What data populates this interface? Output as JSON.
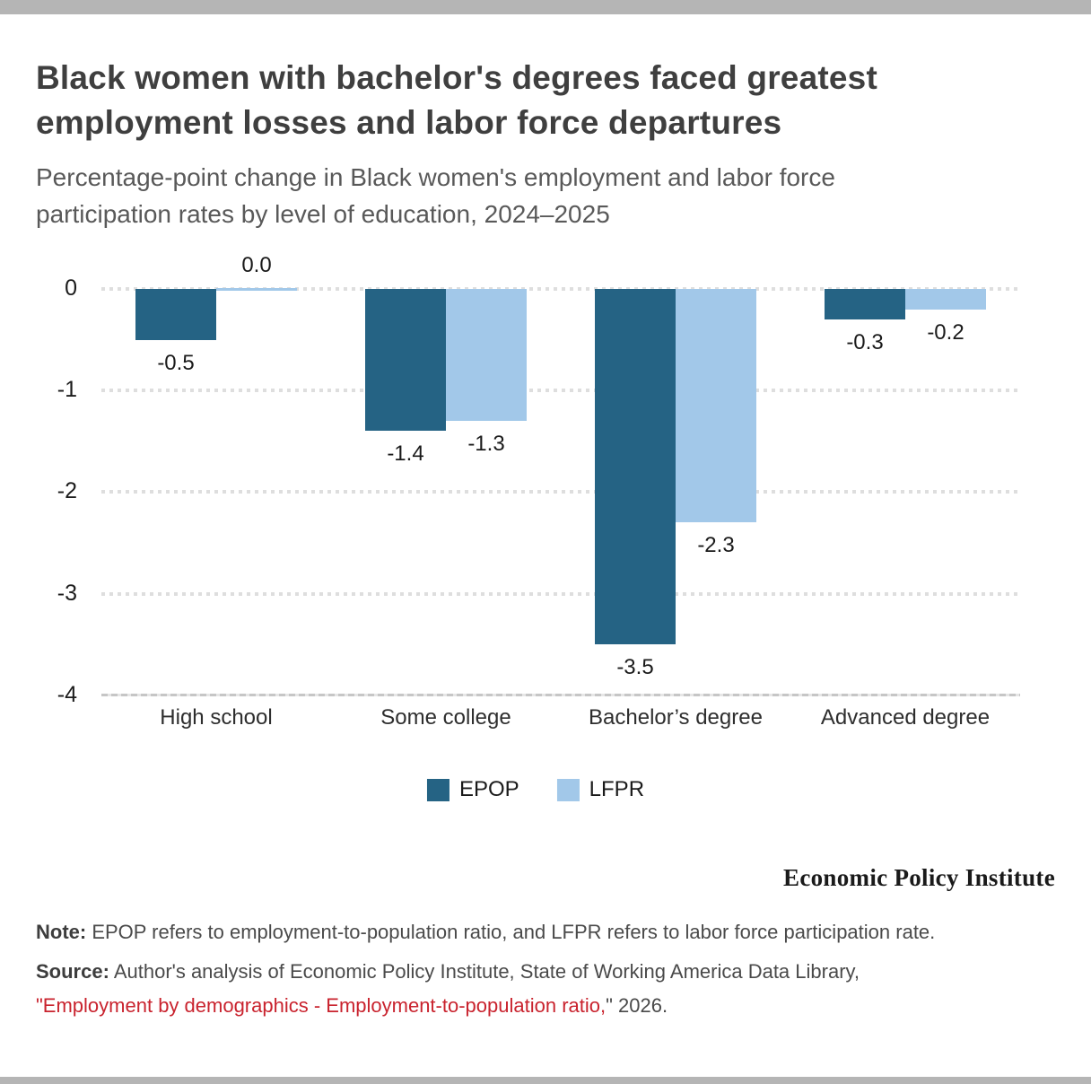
{
  "header": {
    "title_lines": [
      "Black women with bachelor's degrees faced greatest",
      "employment losses and labor force departures"
    ],
    "subtitle_lines": [
      "Percentage-point change in Black women's employment and labor force",
      "participation rates by level of education, 2024–2025"
    ]
  },
  "chart_data": {
    "type": "bar",
    "title": "Black women with bachelor's degrees faced greatest employment losses and labor force departures",
    "subtitle": "Percentage-point change in Black women's employment and labor force participation rates by level of education, 2024–2025",
    "categories": [
      "High school",
      "Some college",
      "Bachelor’s degree",
      "Advanced degree"
    ],
    "series": [
      {
        "name": "EPOP",
        "color": "#256384",
        "values": [
          -0.5,
          -1.4,
          -3.5,
          -0.3
        ],
        "labels": [
          "-0.5",
          "-1.4",
          "-3.5",
          "-0.3"
        ]
      },
      {
        "name": "LFPR",
        "color": "#a2c8e9",
        "values": [
          0.0,
          -1.3,
          -2.3,
          -0.2
        ],
        "labels": [
          "0.0",
          "-1.3",
          "-2.3",
          "-0.2"
        ]
      }
    ],
    "ylim": [
      -4,
      0
    ],
    "yticks": [
      0,
      -1,
      -2,
      -3,
      -4
    ],
    "ytick_labels": [
      "0",
      "-1",
      "-2",
      "-3",
      "-4"
    ],
    "xlabel": "",
    "ylabel": "",
    "grid": "horizontal-dotted",
    "legend_position": "bottom-center",
    "value_labels_shown": true
  },
  "footer": {
    "logo_text": "Economic Policy Institute",
    "note_label": "Note:",
    "note_text": " EPOP refers to employment-to-population ratio, and LFPR refers to labor force participation rate.",
    "source_label": "Source:",
    "source_line1": " Author's analysis of Economic Policy Institute, State of Working America Data Library,",
    "source_link_text": "\"Employment by demographics - Employment-to-population ratio,",
    "source_suffix": "\" 2026.",
    "link_color": "#c9232e"
  }
}
